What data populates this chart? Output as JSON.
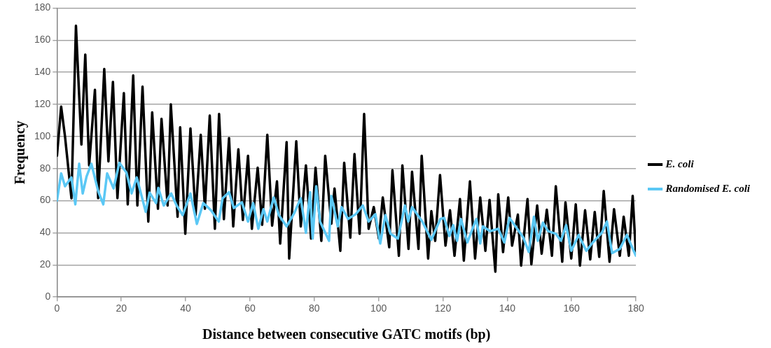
{
  "chart_data": {
    "type": "line",
    "xlabel": "Distance between consecutive GATC motifs (bp)",
    "ylabel": "Frequency",
    "xlim": [
      0,
      180
    ],
    "ylim": [
      0,
      180
    ],
    "xticks": [
      0,
      20,
      40,
      60,
      80,
      100,
      120,
      140,
      160,
      180
    ],
    "yticks": [
      0,
      20,
      40,
      60,
      80,
      100,
      120,
      140,
      160,
      180
    ],
    "grid": "y",
    "legend": "right",
    "marker": "none",
    "line_style": "solid",
    "series": [
      {
        "name": "E. coli",
        "color": "#000000",
        "x": [
          0,
          1.3,
          2.5,
          4.5,
          5.9,
          7.6,
          8.8,
          10,
          11.8,
          12.8,
          14.7,
          16,
          17.4,
          18.8,
          20.8,
          22,
          23.7,
          25,
          26.6,
          28.4,
          29.6,
          31.4,
          32.5,
          34.4,
          35.4,
          37.5,
          38.3,
          39.9,
          41.5,
          43.1,
          44.7,
          46,
          47.5,
          49.1,
          50.4,
          51.9,
          53.5,
          54.8,
          56.4,
          57.8,
          59.4,
          60.6,
          62.4,
          63.8,
          65.4,
          66.9,
          68.4,
          69.4,
          71.4,
          72.2,
          74.4,
          75.8,
          77.4,
          79,
          80.4,
          82.2,
          83.4,
          85.3,
          86.3,
          88.1,
          89.3,
          91.2,
          92.5,
          94.1,
          95.5,
          96.9,
          98.5,
          100.1,
          101.3,
          103.3,
          104.3,
          106.3,
          107.4,
          109.3,
          110.4,
          112.4,
          113.4,
          115.4,
          116.4,
          117.6,
          119.1,
          120.8,
          122.2,
          123.6,
          125.3,
          126.5,
          128.4,
          130,
          131.6,
          133.2,
          134.5,
          136.3,
          137.2,
          138.7,
          140.3,
          141.5,
          143.3,
          144.3,
          146.3,
          147.5,
          149.3,
          150.7,
          152.3,
          153.9,
          155.1,
          157.1,
          158.1,
          159.9,
          161.3,
          162.6,
          164.2,
          165.8,
          167.2,
          168.6,
          170,
          171.8,
          173.2,
          175,
          176.2,
          177.8,
          179,
          180
        ],
        "values": [
          88,
          118.6,
          100,
          61.5,
          168.9,
          95,
          151,
          82,
          129,
          61.6,
          142,
          84.5,
          134,
          61.6,
          127,
          57.7,
          138,
          57,
          131,
          47,
          115,
          55,
          111,
          57,
          120,
          50,
          105.7,
          39.4,
          105,
          51,
          101,
          55,
          113,
          42.5,
          114,
          48.5,
          99,
          44,
          92,
          48,
          88,
          42.5,
          80.5,
          45,
          101,
          44.5,
          72,
          33.3,
          96.5,
          24,
          97,
          44,
          82,
          36.4,
          80.5,
          35,
          88,
          45.6,
          67.6,
          28.8,
          83.6,
          37,
          89,
          39.4,
          114,
          42.5,
          56,
          36.4,
          62,
          31,
          79,
          25.7,
          82,
          30,
          78,
          30,
          88,
          24,
          53.5,
          35,
          76,
          32,
          54,
          25.7,
          61,
          22.7,
          72,
          24,
          62,
          28.8,
          60.5,
          15.8,
          64,
          28,
          62,
          32,
          51.3,
          19.6,
          61,
          20.4,
          57,
          27,
          54.4,
          25.7,
          69,
          22,
          59,
          24,
          57.7,
          19.6,
          54,
          23.4,
          53,
          25,
          66,
          22,
          54.7,
          25.7,
          50,
          25.7,
          63,
          27
        ]
      },
      {
        "name": "Randomised E. coli",
        "color": "#5bc8f5",
        "x": [
          0,
          1.3,
          2.5,
          4.5,
          5.7,
          6.9,
          8,
          9.2,
          10.7,
          12.8,
          14.4,
          15.6,
          17.6,
          19.4,
          21.6,
          23.2,
          24.8,
          27.6,
          28.8,
          30.8,
          31.5,
          33.2,
          35.5,
          37.2,
          39.1,
          41.5,
          43.5,
          45.5,
          47.9,
          50.3,
          51.5,
          53.5,
          55,
          57.5,
          59.4,
          61,
          62.6,
          64.2,
          65.4,
          67.4,
          69,
          71.4,
          73.8,
          75.8,
          77.4,
          78.7,
          79.5,
          80.6,
          81.8,
          84.6,
          85.3,
          87.3,
          88.5,
          90.5,
          92.9,
          95.1,
          96.9,
          99,
          100.5,
          102.1,
          103.7,
          106,
          108.2,
          109.2,
          110.4,
          113.6,
          116.4,
          119.2,
          120.4,
          122,
          123.2,
          124.4,
          125.6,
          127.6,
          130.4,
          131.6,
          132.4,
          134.7,
          137.2,
          139.1,
          140.7,
          143.1,
          145,
          146.7,
          148.3,
          149.5,
          151.1,
          152.7,
          155.1,
          156.7,
          158.3,
          159.9,
          162.2,
          164.6,
          166.6,
          169.4,
          171,
          172.6,
          175,
          177.2,
          178.6,
          180
        ],
        "values": [
          60,
          77,
          69,
          74.5,
          57.7,
          83,
          64.5,
          75,
          83,
          66,
          57.7,
          77,
          67.6,
          83.6,
          77.5,
          64.5,
          74.5,
          53,
          65,
          58.5,
          68,
          57,
          64.5,
          57,
          51,
          64.5,
          45.5,
          58.5,
          54,
          47,
          61.5,
          65.3,
          55.4,
          59,
          47,
          58.5,
          42.5,
          54.7,
          47,
          62,
          51,
          44,
          52.4,
          61.5,
          40,
          65.3,
          36.4,
          69,
          47,
          35,
          63,
          44,
          56,
          48.6,
          51.6,
          57,
          47,
          51.6,
          33.3,
          51,
          39.4,
          36.4,
          57,
          47,
          56,
          47,
          35.6,
          48.6,
          49.3,
          38,
          44.8,
          35,
          48.6,
          34,
          48.6,
          33.3,
          44,
          41,
          42.5,
          34,
          49.3,
          42.5,
          37,
          28,
          50,
          35,
          46.3,
          41,
          39.4,
          35,
          44.8,
          28.8,
          38.7,
          28.8,
          34,
          40,
          47,
          27.3,
          30,
          38.7,
          32,
          25.7
        ]
      }
    ]
  }
}
